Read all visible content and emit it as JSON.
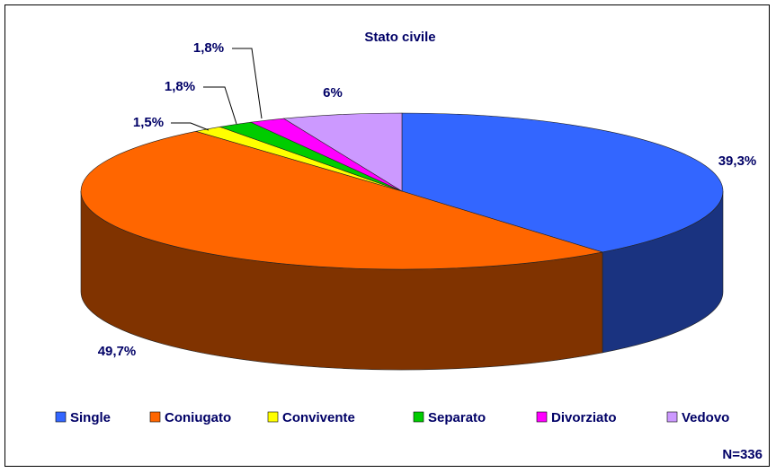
{
  "chart_data": {
    "type": "pie3d",
    "title": "Stato civile",
    "categories": [
      "Single",
      "Coniugato",
      "Convivente",
      "Separato",
      "Divorziato",
      "Vedovo"
    ],
    "values": [
      39.3,
      49.7,
      1.5,
      1.8,
      1.8,
      6
    ],
    "value_labels": [
      "39,3%",
      "49,7%",
      "1,5%",
      "1,8%",
      "1,8%",
      "6%"
    ],
    "colors": [
      "#3366ff",
      "#ff6600",
      "#ffff00",
      "#00cc00",
      "#ff00ff",
      "#cc99ff"
    ],
    "annotation": "N=336",
    "legend": "bottom"
  }
}
